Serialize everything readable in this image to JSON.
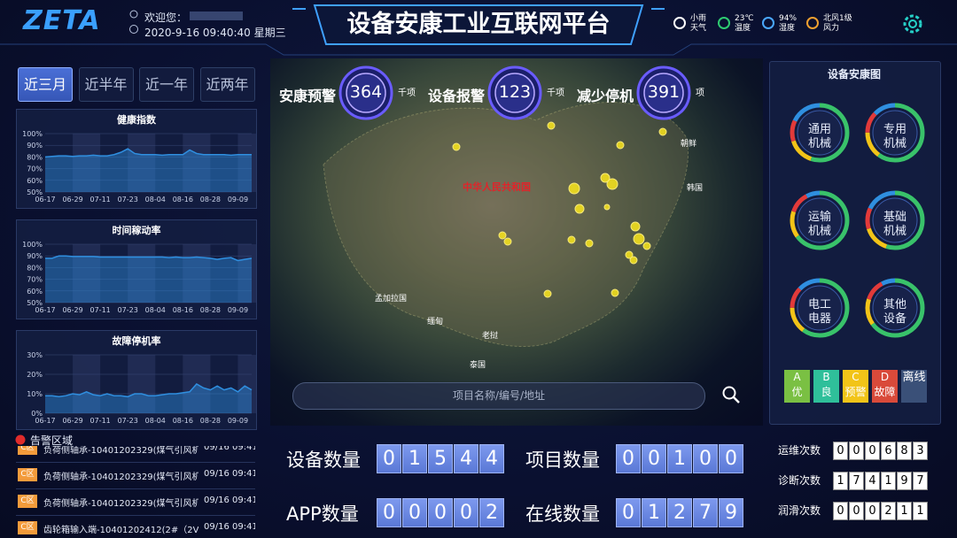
{
  "header": {
    "logo": "ZETA",
    "welcome": "欢迎您：",
    "datetime": "2020-9-16 09:40:40 星期三",
    "title": "设备安康工业互联网平台",
    "weather": [
      {
        "value": "小雨",
        "label": "天气"
      },
      {
        "value": "23℃",
        "label": "温度"
      },
      {
        "value": "94%",
        "label": "湿度"
      },
      {
        "value": "北风1级",
        "label": "风力"
      }
    ]
  },
  "tabs": [
    "近三月",
    "近半年",
    "近一年",
    "近两年"
  ],
  "charts": [
    {
      "type": "line",
      "title": "健康指数",
      "color": "#2f8fe0",
      "grid": true,
      "categories": [
        "06-17",
        null,
        null,
        null,
        "06-29",
        null,
        null,
        null,
        "07-11",
        null,
        null,
        null,
        "07-23",
        null,
        null,
        null,
        "08-04",
        null,
        null,
        null,
        "08-16",
        null,
        null,
        null,
        "08-28",
        null,
        null,
        null,
        "09-09",
        null,
        null
      ],
      "values": [
        80,
        80.5,
        81,
        81,
        80.5,
        81,
        81,
        81.5,
        81,
        81,
        82,
        84,
        87,
        83,
        82,
        82,
        82,
        81.5,
        82,
        82,
        82,
        86,
        83,
        82,
        82,
        82,
        82,
        81.5,
        82,
        82,
        82
      ],
      "ylim": [
        50,
        100
      ],
      "yticks": [
        {
          "value": 50,
          "label": "50%"
        },
        {
          "value": 60,
          "label": "60%"
        },
        {
          "value": 70,
          "label": "70%"
        },
        {
          "value": 80,
          "label": "80%"
        },
        {
          "value": 90,
          "label": "90%"
        },
        {
          "value": 100,
          "label": "100%"
        }
      ]
    },
    {
      "type": "line",
      "title": "时间稼动率",
      "color": "#2f8fe0",
      "grid": true,
      "categories": [
        "06-17",
        null,
        null,
        null,
        "06-29",
        null,
        null,
        null,
        "07-11",
        null,
        null,
        null,
        "07-23",
        null,
        null,
        null,
        "08-04",
        null,
        null,
        null,
        "08-16",
        null,
        null,
        null,
        "08-28",
        null,
        null,
        null,
        "09-09",
        null,
        null
      ],
      "values": [
        88,
        88,
        90,
        90,
        89.5,
        89.5,
        89.5,
        89.5,
        89,
        89,
        89,
        89,
        89,
        89,
        89,
        89,
        89,
        89,
        88.5,
        89,
        88.5,
        88.5,
        89,
        88.5,
        88,
        87,
        88,
        88.5,
        86,
        87,
        88
      ],
      "ylim": [
        50,
        100
      ],
      "yticks": [
        {
          "value": 50,
          "label": "50%"
        },
        {
          "value": 60,
          "label": "60%"
        },
        {
          "value": 70,
          "label": "70%"
        },
        {
          "value": 80,
          "label": "80%"
        },
        {
          "value": 90,
          "label": "90%"
        },
        {
          "value": 100,
          "label": "100%"
        }
      ]
    },
    {
      "type": "line",
      "title": "故障停机率",
      "color": "#2f8fe0",
      "grid": true,
      "categories": [
        "06-17",
        null,
        null,
        null,
        "06-29",
        null,
        null,
        null,
        "07-11",
        null,
        null,
        null,
        "07-23",
        null,
        null,
        null,
        "08-04",
        null,
        null,
        null,
        "08-16",
        null,
        null,
        null,
        "08-28",
        null,
        null,
        null,
        "09-09",
        null,
        null
      ],
      "values": [
        9,
        9,
        8.5,
        9,
        10,
        9.5,
        11,
        9.5,
        9,
        10,
        9,
        9,
        8.5,
        10,
        10,
        9,
        9,
        9.5,
        10,
        10,
        10.5,
        11,
        15,
        13,
        12,
        14,
        12,
        13,
        11,
        14,
        12
      ],
      "ylim": [
        0,
        30
      ],
      "yticks": [
        {
          "value": 0,
          "label": "0%"
        },
        {
          "value": 10,
          "label": "10%"
        },
        {
          "value": 20,
          "label": "20%"
        },
        {
          "value": 30,
          "label": "30%"
        }
      ]
    }
  ],
  "kpis": [
    {
      "label": "安康预警",
      "value": 364,
      "unit": "千项"
    },
    {
      "label": "设备报警",
      "value": 123,
      "unit": "千项"
    },
    {
      "label": "减少停机",
      "value": 391,
      "unit": "项"
    }
  ],
  "map": {
    "labels": [
      "中华人民共和国",
      "韩国",
      "朝鲜",
      "孟加拉国",
      "缅甸",
      "老挝",
      "泰国"
    ],
    "search_placeholder": "项目名称/编号/地址"
  },
  "status": {
    "title": "设备安康图",
    "groups": [
      [
        "通用",
        "机械"
      ],
      [
        "专用",
        "机械"
      ],
      [
        "运输",
        "机械"
      ],
      [
        "基础",
        "机械"
      ],
      [
        "电工",
        "电器"
      ],
      [
        "其他",
        "设备"
      ]
    ],
    "legend": [
      {
        "grade": "A",
        "label": "优"
      },
      {
        "grade": "B",
        "label": "良"
      },
      {
        "grade": "C",
        "label": "预警"
      },
      {
        "grade": "D",
        "label": "故障"
      },
      {
        "label": "离线"
      }
    ]
  },
  "alarms": {
    "title": "告警区域",
    "rows": [
      {
        "zone": "C区",
        "text": "负荷侧轴承-10401202329(煤气引风机电...",
        "time": "09/16 09:41"
      },
      {
        "zone": "C区",
        "text": "负荷侧轴承-10401202329(煤气引风机电...",
        "time": "09/16 09:41"
      },
      {
        "zone": "C区",
        "text": "负荷侧轴承-10401202329(煤气引风机电...",
        "time": "09/16 09:41"
      },
      {
        "zone": "C区",
        "text": "齿轮箱输入端-10401202412(2#（2V）...",
        "time": "09/16 09:41"
      }
    ]
  },
  "counters": [
    {
      "label": "设备数量",
      "digits": [
        "0",
        "1",
        "5",
        "4",
        "4"
      ]
    },
    {
      "label": "项目数量",
      "digits": [
        "0",
        "0",
        "1",
        "0",
        "0"
      ]
    },
    {
      "label": "APP数量",
      "digits": [
        "0",
        "0",
        "0",
        "0",
        "2"
      ]
    },
    {
      "label": "在线数量",
      "digits": [
        "0",
        "1",
        "2",
        "7",
        "9"
      ]
    }
  ],
  "stats": [
    {
      "label": "运维次数",
      "digits": [
        "0",
        "0",
        "0",
        "6",
        "8",
        "3"
      ]
    },
    {
      "label": "诊断次数",
      "digits": [
        "1",
        "7",
        "4",
        "1",
        "9",
        "7"
      ]
    },
    {
      "label": "润滑次数",
      "digits": [
        "0",
        "0",
        "0",
        "2",
        "1",
        "1"
      ]
    }
  ]
}
